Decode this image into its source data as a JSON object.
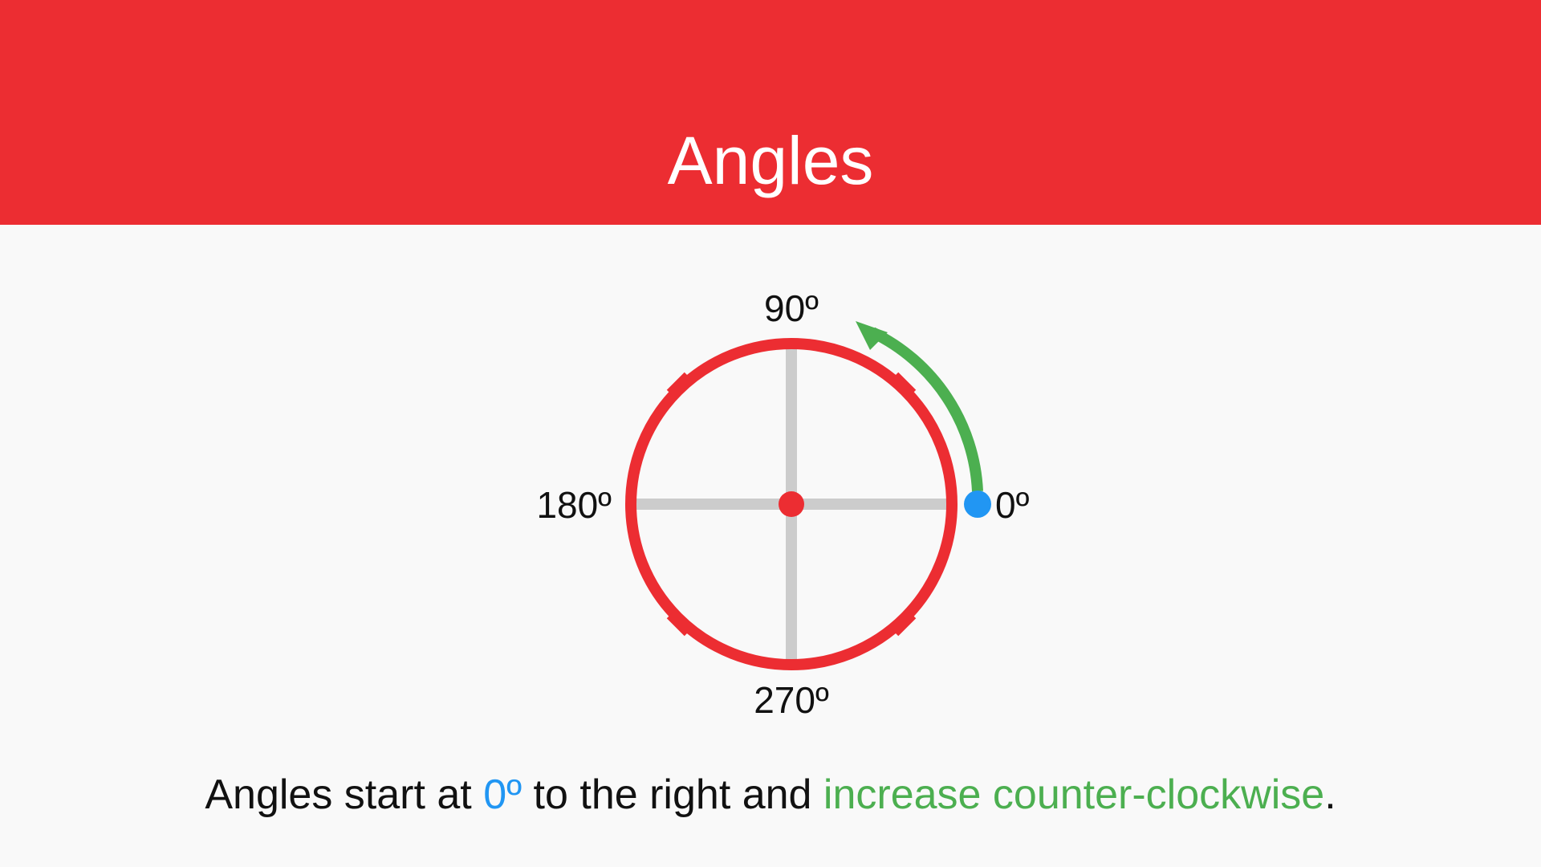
{
  "title": "Angles",
  "diagram": {
    "labels": {
      "deg0": "0º",
      "deg90": "90º",
      "deg180": "180º",
      "deg270": "270º"
    },
    "colors": {
      "circle": "#ec2d32",
      "axes": "#cccccc",
      "start_point": "#2196f3",
      "arrow": "#4caf50"
    }
  },
  "caption": {
    "part1": "Angles start at ",
    "zero": "0º",
    "part2": " to the right and ",
    "increase": "increase counter-clockwise",
    "end": "."
  }
}
